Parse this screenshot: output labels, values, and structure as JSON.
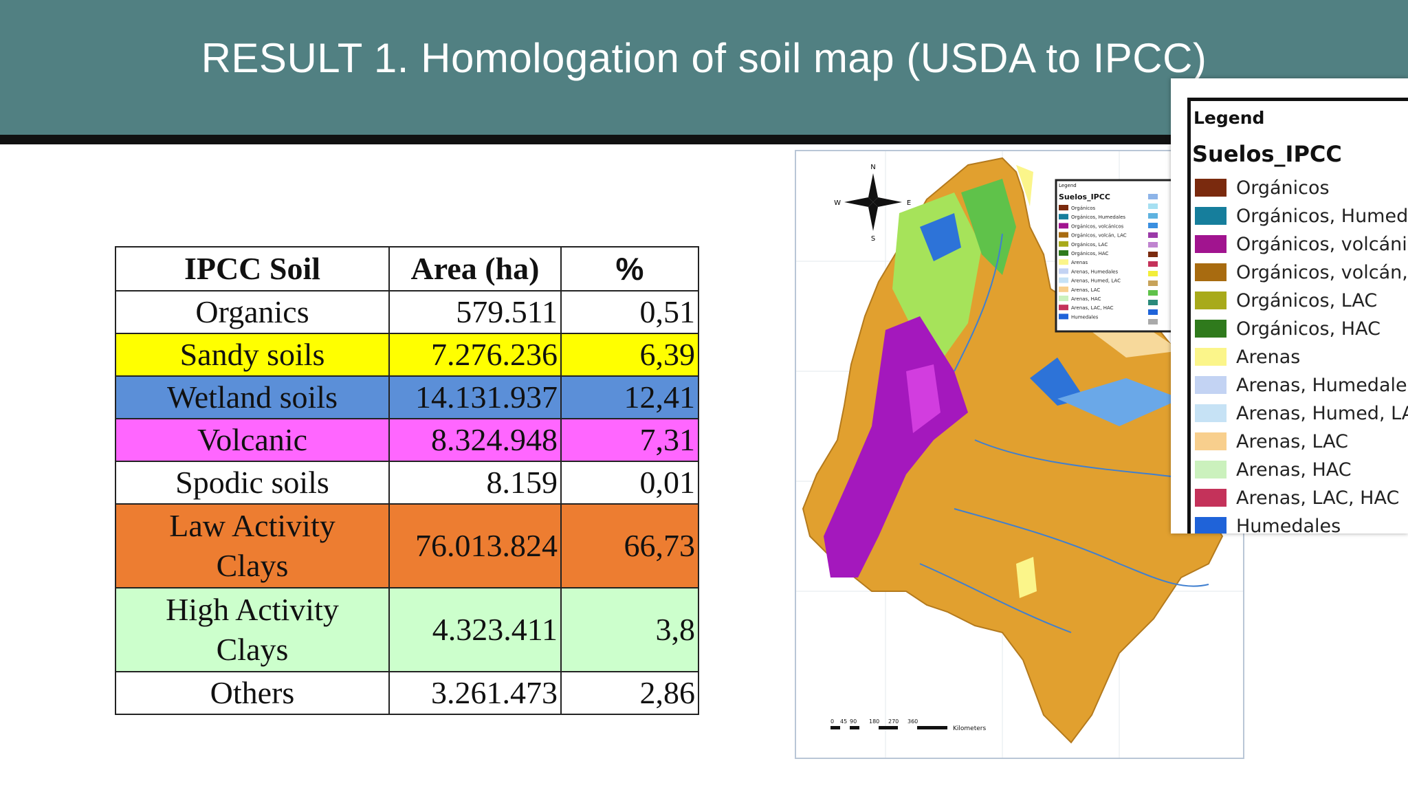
{
  "header": {
    "title": "RESULT 1. Homologation of soil map (USDA to IPCC)"
  },
  "table": {
    "headers": [
      "IPCC Soil",
      "Area (ha)",
      "%"
    ],
    "rows": [
      {
        "soil": "Organics",
        "area": "579.511",
        "pct": "0,51",
        "color": "#ffffff"
      },
      {
        "soil": "Sandy soils",
        "area": "7.276.236",
        "pct": "6,39",
        "color": "#ffff00"
      },
      {
        "soil": "Wetland soils",
        "area": "14.131.937",
        "pct": "12,41",
        "color": "#5b8fd8"
      },
      {
        "soil": "Volcanic",
        "area": "8.324.948",
        "pct": "7,31",
        "color": "#ff66ff"
      },
      {
        "soil": "Spodic soils",
        "area": "8.159",
        "pct": "0,01",
        "color": "#ffffff"
      },
      {
        "soil_line1": "Law Activity",
        "soil_line2": "Clays",
        "area": "76.013.824",
        "pct": "66,73",
        "color": "#ed7d31"
      },
      {
        "soil_line1": "High Activity",
        "soil_line2": "Clays",
        "area": "4.323.411",
        "pct": "3,8",
        "color": "#ccffcc"
      },
      {
        "soil": "Others",
        "area": "3.261.473",
        "pct": "2,86",
        "color": "#ffffff"
      }
    ]
  },
  "legend": {
    "caption": "Legend",
    "title": "Suelos_IPCC",
    "items": [
      {
        "label": "Orgánicos",
        "color": "#7a2a0e"
      },
      {
        "label": "Orgánicos, Humedal",
        "color": "#167e9c"
      },
      {
        "label": "Orgánicos, volcánico",
        "color": "#a1148f"
      },
      {
        "label": "Orgánicos, volcán, L",
        "color": "#a86b10"
      },
      {
        "label": "Orgánicos, LAC",
        "color": "#a8aa1a"
      },
      {
        "label": "Orgánicos, HAC",
        "color": "#2f7a1c"
      },
      {
        "label": "Arenas",
        "color": "#fbf58a"
      },
      {
        "label": "Arenas, Humedales",
        "color": "#c3d3f3"
      },
      {
        "label": "Arenas, Humed, LAC",
        "color": "#c6e2f5"
      },
      {
        "label": "Arenas, LAC",
        "color": "#f8cf8d"
      },
      {
        "label": "Arenas, HAC",
        "color": "#cbf1bd"
      },
      {
        "label": "Arenas, LAC, HAC",
        "color": "#c4325a"
      },
      {
        "label": "Humedales",
        "color": "#1f63d9"
      }
    ]
  },
  "map": {
    "scale_ticks": [
      "0",
      "45",
      "90",
      "180",
      "270",
      "360"
    ],
    "scale_unit": "Kilometers",
    "mini_legend": {
      "caption": "Legend",
      "title": "Suelos_IPCC",
      "items": [
        "Orgánicos",
        "Orgánicos, Humedales",
        "Orgánicos, volcánicos",
        "Orgánicos, volcán, LAC",
        "Orgánicos, LAC",
        "Orgánicos, HAC",
        "Arenas",
        "Arenas, Humedales",
        "Arenas, Humed, LAC",
        "Arenas, LAC",
        "Arenas, HAC",
        "Arenas, LAC, HAC",
        "Humedales"
      ]
    }
  }
}
